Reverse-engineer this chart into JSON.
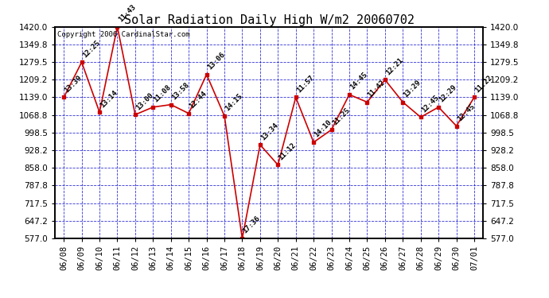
{
  "title": "Solar Radiation Daily High W/m2 20060702",
  "copyright": "Copyright 2006 CardinalStar.com",
  "dates": [
    "06/08",
    "06/09",
    "06/10",
    "06/11",
    "06/12",
    "06/13",
    "06/14",
    "06/15",
    "06/16",
    "06/17",
    "06/18",
    "06/19",
    "06/20",
    "06/21",
    "06/22",
    "06/23",
    "06/24",
    "06/25",
    "06/26",
    "06/27",
    "06/28",
    "06/29",
    "06/30",
    "07/01"
  ],
  "values": [
    1139,
    1279,
    1080,
    1420,
    1070,
    1100,
    1110,
    1075,
    1230,
    1065,
    577,
    950,
    870,
    1139,
    960,
    1010,
    1150,
    1120,
    1209,
    1120,
    1060,
    1100,
    1025,
    1139
  ],
  "labels": [
    "13:39",
    "12:25",
    "13:14",
    "11:43",
    "13:00",
    "11:08",
    "13:58",
    "12:44",
    "13:06",
    "14:15",
    "17:36",
    "13:34",
    "11:12",
    "11:57",
    "14:10",
    "11:25",
    "14:45",
    "11:42",
    "12:21",
    "13:29",
    "12:45",
    "12:29",
    "12:45",
    "11:22"
  ],
  "ylim": [
    577.0,
    1420.0
  ],
  "yticks": [
    577.0,
    647.2,
    717.5,
    787.8,
    858.0,
    928.2,
    998.5,
    1068.8,
    1139.0,
    1209.2,
    1279.5,
    1349.8,
    1420.0
  ],
  "line_color": "#cc0000",
  "marker_color": "#cc0000",
  "grid_color": "#0000cc",
  "background_color": "#ffffff",
  "title_fontsize": 11,
  "label_fontsize": 6.5,
  "copyright_fontsize": 6.5
}
